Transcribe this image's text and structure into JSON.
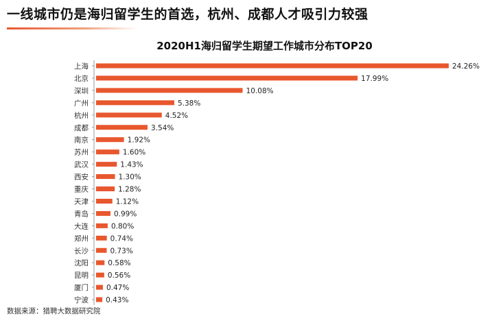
{
  "headline": "一线城市仍是海归留学生的首选，杭州、成都人才吸引力较强",
  "source": "数据来源：猎聘大数据研究院",
  "colors": {
    "bar": "#e8572e",
    "axis": "#999999",
    "accent": "#e8572e"
  },
  "chart_data": {
    "type": "bar",
    "orientation": "horizontal",
    "title": "2020H1海归留学生期望工作城市分布TOP20",
    "xlabel": "",
    "ylabel": "",
    "xlim": [
      0,
      24.26
    ],
    "grid": false,
    "legend": "none",
    "categories": [
      "上海",
      "北京",
      "深圳",
      "广州",
      "杭州",
      "成都",
      "南京",
      "苏州",
      "武汉",
      "西安",
      "重庆",
      "天津",
      "青岛",
      "大连",
      "郑州",
      "长沙",
      "沈阳",
      "昆明",
      "厦门",
      "宁波"
    ],
    "values": [
      24.26,
      17.99,
      10.08,
      5.38,
      4.52,
      3.54,
      1.92,
      1.6,
      1.43,
      1.3,
      1.28,
      1.12,
      0.99,
      0.8,
      0.74,
      0.73,
      0.58,
      0.56,
      0.47,
      0.43
    ],
    "value_labels": [
      "24.26%",
      "17.99%",
      "10.08%",
      "5.38%",
      "4.52%",
      "3.54%",
      "1.92%",
      "1.60%",
      "1.43%",
      "1.30%",
      "1.28%",
      "1.12%",
      "0.99%",
      "0.80%",
      "0.74%",
      "0.73%",
      "0.58%",
      "0.56%",
      "0.47%",
      "0.43%"
    ]
  }
}
